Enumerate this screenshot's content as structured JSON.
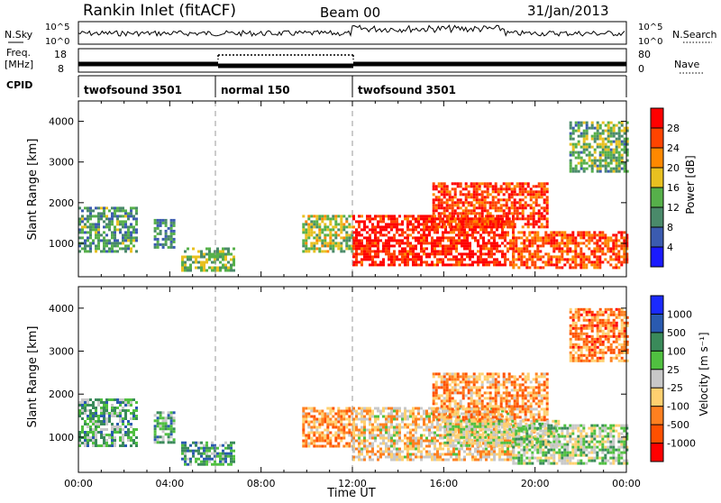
{
  "header": {
    "station": "Rankin Inlet (fitACF)",
    "beam": "Beam 00",
    "date": "31/Jan/2013"
  },
  "status_panels": {
    "nsky_label": "N.Sky",
    "nsky_ticks": [
      "10^5",
      "10^0"
    ],
    "nsearch_label": "N.Search",
    "nsearch_ticks": [
      "10^5",
      "10^0"
    ],
    "freq_label": "Freq.",
    "freq_unit": "[MHz]",
    "freq_ticks": [
      "18",
      "8"
    ],
    "nave_label": "Nave",
    "nave_ticks": [
      "80",
      "0"
    ],
    "cpid_label": "CPID",
    "cpid_segments": [
      {
        "name": "twofsound 3501",
        "start_hr": 0,
        "end_hr": 6
      },
      {
        "name": "normal 150",
        "start_hr": 6,
        "end_hr": 12
      },
      {
        "name": "twofsound 3501",
        "start_hr": 12,
        "end_hr": 24
      }
    ]
  },
  "chart_data": [
    {
      "type": "heatmap",
      "title": "Power",
      "xlabel": "",
      "ylabel": "Slant Range [km]",
      "xlim": [
        0,
        24
      ],
      "ylim": [
        180,
        4500
      ],
      "y_ticks": [
        "1000",
        "2000",
        "3000",
        "4000"
      ],
      "colorbar_label": "Power [dB]",
      "colorbar_ticks": [
        "4",
        "8",
        "12",
        "16",
        "20",
        "24",
        "28"
      ],
      "colorbar_range": [
        0,
        32
      ],
      "colors": [
        "#1a1aff",
        "#3b5bb0",
        "#4a8a6a",
        "#56b04a",
        "#e8c020",
        "#ff8800",
        "#ff4400",
        "#ff0000"
      ],
      "regions": [
        {
          "x0": 0.0,
          "x1": 2.5,
          "y0": 800,
          "y1": 1900,
          "level": 0.35
        },
        {
          "x0": 3.3,
          "x1": 4.2,
          "y0": 900,
          "y1": 1600,
          "level": 0.3
        },
        {
          "x0": 4.5,
          "x1": 6.8,
          "y0": 350,
          "y1": 900,
          "level": 0.45
        },
        {
          "x0": 9.8,
          "x1": 12.0,
          "y0": 800,
          "y1": 1700,
          "level": 0.5
        },
        {
          "x0": 12.0,
          "x1": 19.0,
          "y0": 500,
          "y1": 1700,
          "level": 0.9
        },
        {
          "x0": 15.5,
          "x1": 20.5,
          "y0": 1400,
          "y1": 2500,
          "level": 0.85
        },
        {
          "x0": 19.0,
          "x1": 24.0,
          "y0": 400,
          "y1": 1300,
          "level": 0.8
        },
        {
          "x0": 21.5,
          "x1": 24.0,
          "y0": 2800,
          "y1": 4000,
          "level": 0.4
        }
      ]
    },
    {
      "type": "heatmap",
      "title": "Velocity",
      "xlabel": "Time UT",
      "ylabel": "Slant Range [km]",
      "xlim": [
        0,
        24
      ],
      "ylim": [
        180,
        4500
      ],
      "y_ticks": [
        "1000",
        "2000",
        "3000",
        "4000"
      ],
      "x_ticks": [
        "00:00",
        "04:00",
        "08:00",
        "12:00",
        "16:00",
        "20:00",
        "00:00"
      ],
      "colorbar_label": "Velocity [m s⁻¹]",
      "colorbar_ticks": [
        "1000",
        "500",
        "100",
        "25",
        "-25",
        "-100",
        "-500",
        "-1000"
      ],
      "colors": [
        "#1a2aff",
        "#2a5ab0",
        "#3a8a5a",
        "#50c040",
        "#c8c8c8",
        "#ffd070",
        "#ff8020",
        "#ff5000",
        "#ff0000"
      ],
      "regions": [
        {
          "x0": 0.0,
          "x1": 2.5,
          "y0": 800,
          "y1": 1900,
          "level": 0.35
        },
        {
          "x0": 3.3,
          "x1": 4.2,
          "y0": 900,
          "y1": 1600,
          "level": 0.35
        },
        {
          "x0": 4.5,
          "x1": 6.8,
          "y0": 350,
          "y1": 900,
          "level": 0.3
        },
        {
          "x0": 9.8,
          "x1": 12.0,
          "y0": 800,
          "y1": 1700,
          "level": 0.7
        },
        {
          "x0": 12.0,
          "x1": 19.0,
          "y0": 500,
          "y1": 1700,
          "level": 0.6
        },
        {
          "x0": 15.5,
          "x1": 20.5,
          "y0": 1400,
          "y1": 2500,
          "level": 0.7
        },
        {
          "x0": 16.0,
          "x1": 21.0,
          "y0": 800,
          "y1": 1400,
          "level": 0.5
        },
        {
          "x0": 19.0,
          "x1": 24.0,
          "y0": 400,
          "y1": 1300,
          "level": 0.45
        },
        {
          "x0": 21.5,
          "x1": 24.0,
          "y0": 2800,
          "y1": 4000,
          "level": 0.75
        }
      ]
    }
  ]
}
